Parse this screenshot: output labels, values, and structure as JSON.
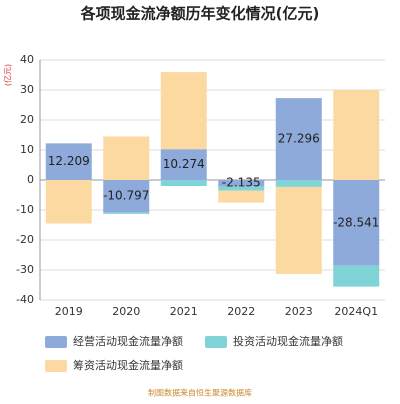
{
  "chart_data": {
    "type": "bar",
    "stacked": true,
    "title": "各项现金流净额历年变化情况(亿元)",
    "y_label": "(亿元)",
    "source": "制图数据来自恒生聚源数据库",
    "categories": [
      "2019",
      "2020",
      "2021",
      "2022",
      "2023",
      "2024Q1"
    ],
    "series": [
      {
        "name": "经营活动现金流量净额",
        "color": "#8eaadb",
        "values": [
          12.209,
          -10.797,
          10.274,
          -2.135,
          27.296,
          -28.541
        ],
        "value_labels": [
          "12.209",
          "-10.797",
          "10.274",
          "-2.135",
          "27.296",
          "-28.541"
        ]
      },
      {
        "name": "投资活动现金流量净额",
        "color": "#80d3d6",
        "values": [
          0,
          -0.5,
          -2,
          -1.4,
          -2.3,
          -7
        ]
      },
      {
        "name": "筹资活动现金流量净额",
        "color": "#fdd9a2",
        "values": [
          -14.5,
          14.5,
          25.7,
          -4,
          -29,
          30
        ]
      }
    ],
    "ylim": [
      -40,
      40
    ],
    "yticks": [
      -40,
      -30,
      -20,
      -10,
      0,
      10,
      20,
      30,
      40
    ],
    "grid": true
  }
}
